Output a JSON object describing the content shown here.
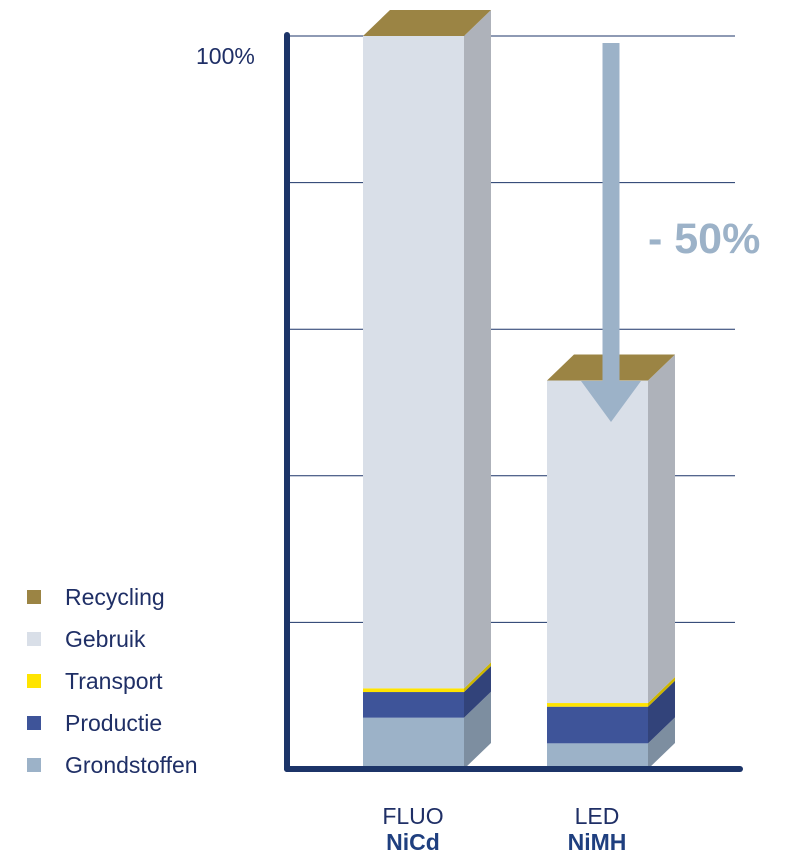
{
  "chart_data": {
    "type": "bar",
    "stacked": true,
    "categories": [
      "FLUO",
      "LED"
    ],
    "category_sublabels": [
      "NiCd",
      "NiMH"
    ],
    "y_tick_label": "100%",
    "ylim": [
      0,
      100
    ],
    "grid": true,
    "legend_position": "bottom-left",
    "annotation": "- 50%",
    "series": [
      {
        "name": "Grondstoffen",
        "color": "#9cb2c8",
        "values": [
          7,
          3.5
        ]
      },
      {
        "name": "Productie",
        "color": "#3e5499",
        "values": [
          3.5,
          5
        ]
      },
      {
        "name": "Transport",
        "color": "#ffe400",
        "values": [
          0.5,
          0.5
        ]
      },
      {
        "name": "Gebruik",
        "color": "#d9dfe8",
        "values": [
          89,
          44
        ]
      },
      {
        "name": "Recycling",
        "color": "#9b8444",
        "values": [
          0,
          0
        ]
      }
    ],
    "legend_order": [
      "Recycling",
      "Gebruik",
      "Transport",
      "Productie",
      "Grondstoffen"
    ],
    "axis_color": "#1c3468",
    "arrow_color": "#9cb2c8"
  }
}
